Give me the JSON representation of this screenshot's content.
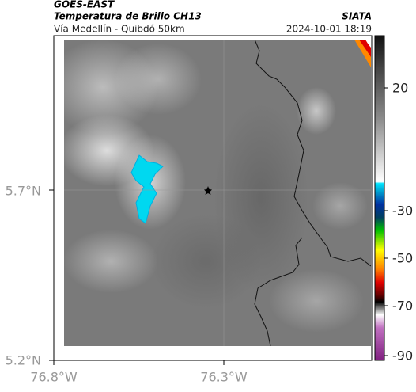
{
  "header": {
    "source": "GOES-EAST",
    "title": "Temperatura de Brillo CH13",
    "organization": "SIATA",
    "subtitle": "Vía Medellín - Quibdó 50km",
    "timestamp": "2024-10-01 18:19"
  },
  "axes": {
    "lat_ticks": [
      "5.7°N",
      "5.2°N"
    ],
    "lon_ticks": [
      "76.8°W",
      "76.3°W"
    ]
  },
  "colorbar": {
    "ticks": [
      "20",
      "-30",
      "-50",
      "-70",
      "-90"
    ]
  }
}
